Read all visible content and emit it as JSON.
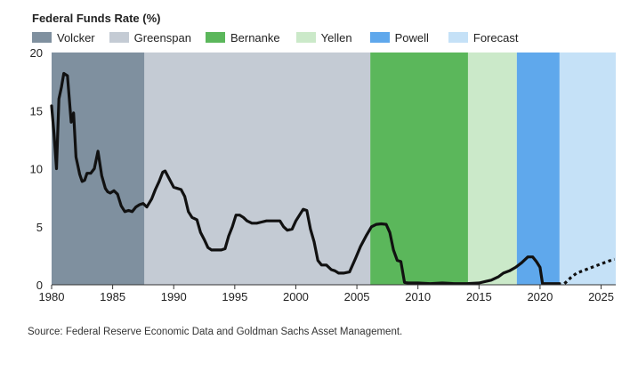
{
  "chart_data": {
    "type": "line",
    "title": "Federal Funds Rate (%)",
    "xlabel": "",
    "ylabel": "",
    "xlim": [
      1980,
      2026.2
    ],
    "ylim": [
      0,
      20
    ],
    "x_ticks": [
      1980,
      1985,
      1990,
      1995,
      2000,
      2005,
      2010,
      2015,
      2020,
      2025
    ],
    "y_ticks": [
      0,
      5,
      10,
      15,
      20
    ],
    "grid": false,
    "legend_position": "top",
    "eras": [
      {
        "name": "Volcker",
        "start": 1980,
        "end": 1987.6,
        "color": "#7f909f"
      },
      {
        "name": "Greenspan",
        "start": 1987.6,
        "end": 2006.1,
        "color": "#c4cbd4"
      },
      {
        "name": "Bernanke",
        "start": 2006.1,
        "end": 2014.1,
        "color": "#5bb75b"
      },
      {
        "name": "Yellen",
        "start": 2014.1,
        "end": 2018.1,
        "color": "#cbe9c9"
      },
      {
        "name": "Powell",
        "start": 2018.1,
        "end": 2021.6,
        "color": "#5fa8ec"
      },
      {
        "name": "Forecast",
        "start": 2021.6,
        "end": 2026.2,
        "color": "#c5e1f7"
      }
    ],
    "series": [
      {
        "style": "solid",
        "color": "#111111",
        "x": [
          1980.0,
          1980.2,
          1980.4,
          1980.6,
          1980.8,
          1981.0,
          1981.3,
          1981.6,
          1981.8,
          1982.0,
          1982.3,
          1982.5,
          1982.7,
          1982.9,
          1983.2,
          1983.5,
          1983.8,
          1984.1,
          1984.4,
          1984.6,
          1984.8,
          1985.1,
          1985.4,
          1985.7,
          1986.0,
          1986.3,
          1986.6,
          1986.9,
          1987.2,
          1987.5,
          1987.8,
          1988.2,
          1988.5,
          1988.8,
          1989.1,
          1989.3,
          1989.7,
          1990.0,
          1990.3,
          1990.6,
          1990.9,
          1991.2,
          1991.5,
          1991.9,
          1992.2,
          1992.5,
          1992.8,
          1993.1,
          1993.5,
          1993.9,
          1994.2,
          1994.5,
          1994.8,
          1995.1,
          1995.4,
          1995.7,
          1996.0,
          1996.4,
          1996.8,
          1997.2,
          1997.6,
          1998.0,
          1998.4,
          1998.7,
          1999.0,
          1999.3,
          1999.7,
          2000.0,
          2000.3,
          2000.6,
          2000.9,
          2001.2,
          2001.5,
          2001.8,
          2002.1,
          2002.5,
          2002.9,
          2003.2,
          2003.5,
          2003.9,
          2004.4,
          2004.9,
          2005.3,
          2005.8,
          2006.2,
          2006.6,
          2007.0,
          2007.4,
          2007.7,
          2008.0,
          2008.3,
          2008.6,
          2008.9,
          2009.2,
          2010.0,
          2011.0,
          2012.0,
          2013.0,
          2014.0,
          2015.0,
          2015.6,
          2016.0,
          2016.6,
          2017.0,
          2017.5,
          2018.0,
          2018.5,
          2019.0,
          2019.4,
          2019.7,
          2020.0,
          2020.2,
          2021.0,
          2021.6
        ],
        "y": [
          15.4,
          13.0,
          10.0,
          16.0,
          17.0,
          18.2,
          18.0,
          14.0,
          14.8,
          11.0,
          9.5,
          8.9,
          9.0,
          9.6,
          9.6,
          10.0,
          11.5,
          9.4,
          8.3,
          8.0,
          7.9,
          8.1,
          7.8,
          6.8,
          6.3,
          6.4,
          6.3,
          6.7,
          6.9,
          7.0,
          6.7,
          7.4,
          8.2,
          8.9,
          9.7,
          9.8,
          9.0,
          8.4,
          8.3,
          8.2,
          7.6,
          6.3,
          5.8,
          5.6,
          4.5,
          3.9,
          3.2,
          3.0,
          3.0,
          3.0,
          3.1,
          4.2,
          5.0,
          6.0,
          6.0,
          5.8,
          5.5,
          5.3,
          5.3,
          5.4,
          5.5,
          5.5,
          5.5,
          5.5,
          5.0,
          4.7,
          4.8,
          5.5,
          6.0,
          6.5,
          6.4,
          4.8,
          3.7,
          2.1,
          1.7,
          1.7,
          1.3,
          1.2,
          1.0,
          1.0,
          1.1,
          2.3,
          3.3,
          4.3,
          5.0,
          5.2,
          5.25,
          5.2,
          4.5,
          3.0,
          2.1,
          2.0,
          0.2,
          0.15,
          0.15,
          0.1,
          0.15,
          0.1,
          0.1,
          0.15,
          0.3,
          0.4,
          0.7,
          1.0,
          1.2,
          1.5,
          1.9,
          2.4,
          2.4,
          2.0,
          1.5,
          0.1,
          0.1,
          0.1
        ]
      },
      {
        "style": "dotted",
        "color": "#111111",
        "x": [
          2022.0,
          2022.5,
          2023.0,
          2023.5,
          2024.0,
          2024.5,
          2025.0,
          2025.5,
          2026.1
        ],
        "y": [
          0.1,
          0.6,
          1.0,
          1.2,
          1.4,
          1.6,
          1.8,
          2.0,
          2.2
        ]
      }
    ]
  },
  "source_note": "Source: Federal Reserve Economic Data and Goldman Sachs Asset Management."
}
